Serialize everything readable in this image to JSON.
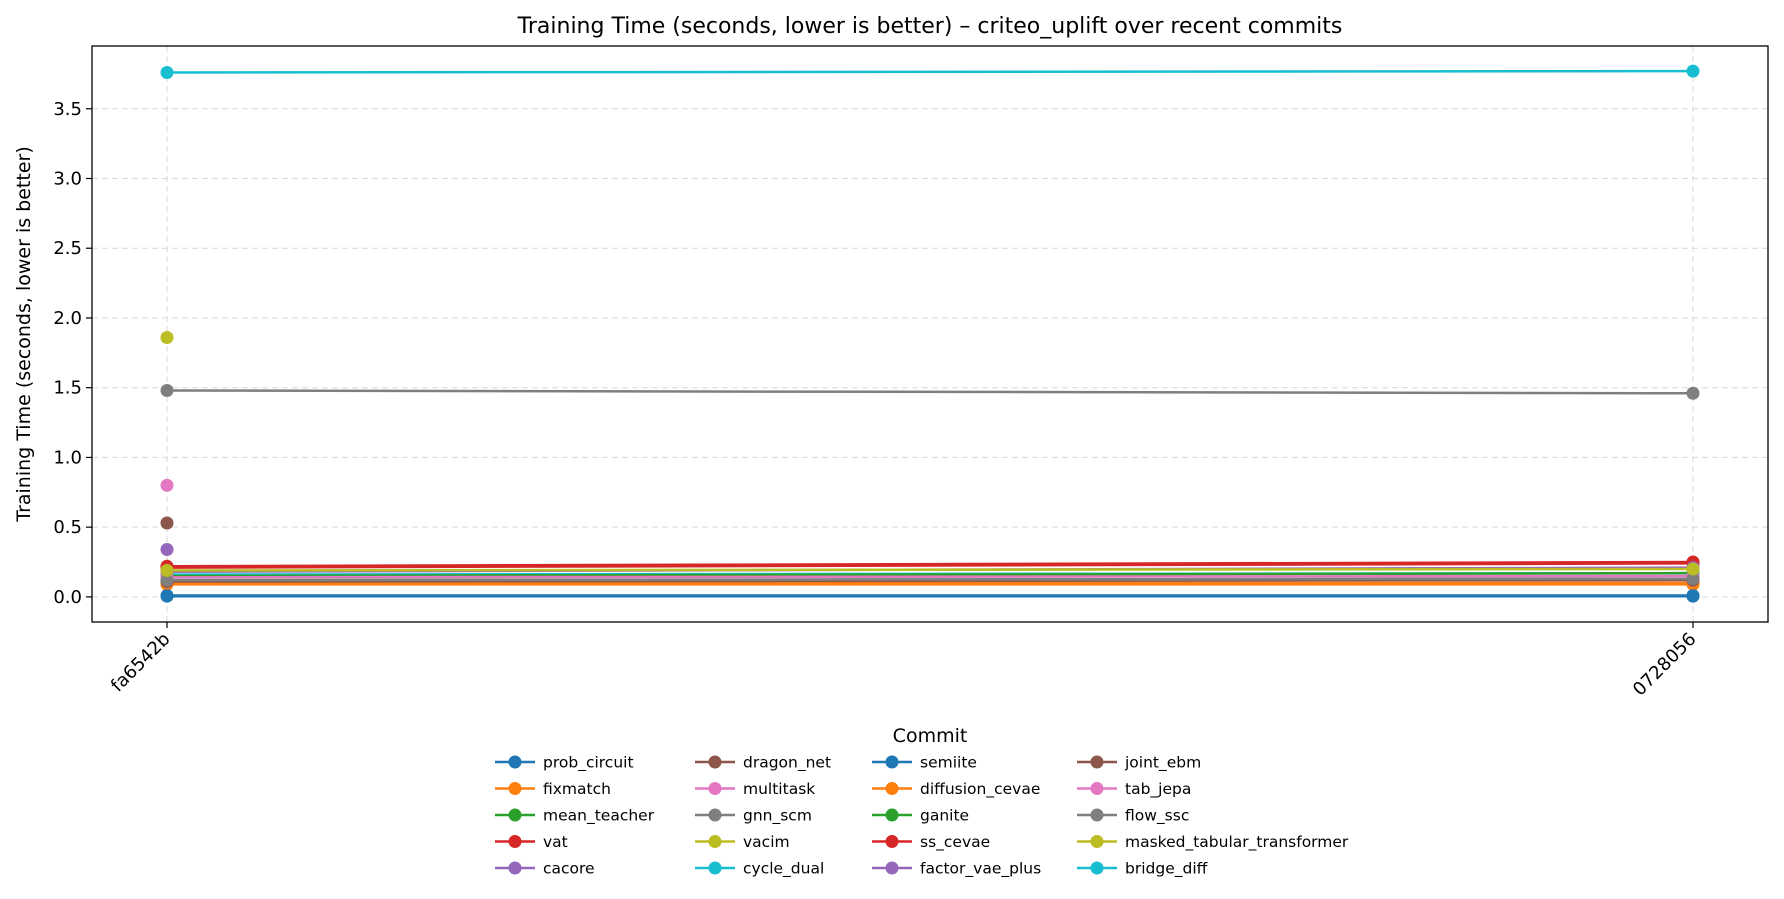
{
  "chart_data": {
    "type": "line",
    "title": "Training Time (seconds, lower is better) – criteo_uplift over recent commits",
    "xlabel": "Commit",
    "ylabel": "Training Time (seconds, lower is better)",
    "categories": [
      "fa6542b",
      "0728056"
    ],
    "ylim": [
      -0.18,
      3.95
    ],
    "yticks": [
      "0.0",
      "0.5",
      "1.0",
      "1.5",
      "2.0",
      "2.5",
      "3.0",
      "3.5"
    ],
    "grid": true,
    "legend_title": "Commit",
    "legend_position": "bottom-center",
    "series": [
      {
        "name": "prob_circuit",
        "color": "#1f77b4",
        "values": [
          0.005,
          0.005
        ]
      },
      {
        "name": "fixmatch",
        "color": "#ff7f0e",
        "values": [
          0.09,
          0.09
        ]
      },
      {
        "name": "mean_teacher",
        "color": "#2ca02c",
        "values": [
          0.12,
          0.13
        ]
      },
      {
        "name": "vat",
        "color": "#d62728",
        "values": [
          0.21,
          0.24
        ]
      },
      {
        "name": "cacore",
        "color": "#9467bd",
        "values": [
          0.34,
          null
        ]
      },
      {
        "name": "dragon_net",
        "color": "#8c564b",
        "values": [
          0.53,
          null
        ]
      },
      {
        "name": "multitask",
        "color": "#e377c2",
        "values": [
          0.8,
          null
        ]
      },
      {
        "name": "gnn_scm",
        "color": "#7f7f7f",
        "values": [
          1.48,
          1.46
        ]
      },
      {
        "name": "vacim",
        "color": "#bcbd22",
        "values": [
          1.86,
          null
        ]
      },
      {
        "name": "cycle_dual",
        "color": "#17becf",
        "values": [
          0.16,
          0.17
        ]
      },
      {
        "name": "semiite",
        "color": "#1f77b4",
        "values": [
          0.01,
          0.01
        ]
      },
      {
        "name": "diffusion_cevae",
        "color": "#ff7f0e",
        "values": [
          0.1,
          0.1
        ]
      },
      {
        "name": "ganite",
        "color": "#2ca02c",
        "values": [
          0.15,
          0.17
        ]
      },
      {
        "name": "ss_cevae",
        "color": "#d62728",
        "values": [
          0.22,
          0.25
        ]
      },
      {
        "name": "factor_vae_plus",
        "color": "#9467bd",
        "values": [
          0.18,
          0.21
        ]
      },
      {
        "name": "joint_ebm",
        "color": "#8c564b",
        "values": [
          0.11,
          0.12
        ]
      },
      {
        "name": "tab_jepa",
        "color": "#e377c2",
        "values": [
          0.14,
          0.15
        ]
      },
      {
        "name": "flow_ssc",
        "color": "#7f7f7f",
        "values": [
          0.12,
          0.13
        ]
      },
      {
        "name": "masked_tabular_transformer",
        "color": "#bcbd22",
        "values": [
          0.19,
          0.2
        ]
      },
      {
        "name": "bridge_diff",
        "color": "#17becf",
        "values": [
          3.76,
          3.77
        ]
      }
    ]
  }
}
